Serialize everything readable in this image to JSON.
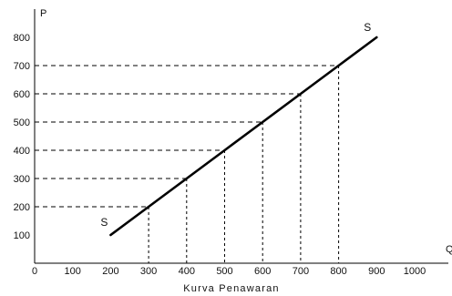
{
  "chart_data": {
    "type": "line",
    "title": "",
    "caption": "Kurva Penawaran",
    "xlabel": "Q",
    "ylabel": "P",
    "xlim": [
      0,
      1000
    ],
    "ylim": [
      0,
      800
    ],
    "x_ticks": [
      0,
      100,
      200,
      300,
      400,
      500,
      600,
      700,
      800,
      900,
      1000
    ],
    "y_ticks": [
      100,
      200,
      300,
      400,
      500,
      600,
      700,
      800
    ],
    "grid": false,
    "legend": "none",
    "series": [
      {
        "label_start": "S",
        "label_end": "S",
        "color": "#000000",
        "x": [
          200,
          250,
          300,
          400,
          500,
          600,
          700,
          800,
          900
        ],
        "y": [
          100,
          150,
          200,
          300,
          400,
          500,
          600,
          700,
          800
        ]
      }
    ],
    "guides": [
      {
        "x": 300,
        "y": 200
      },
      {
        "x": 400,
        "y": 300
      },
      {
        "x": 500,
        "y": 400
      },
      {
        "x": 600,
        "y": 500
      },
      {
        "x": 700,
        "y": 600
      },
      {
        "x": 800,
        "y": 700
      }
    ]
  }
}
